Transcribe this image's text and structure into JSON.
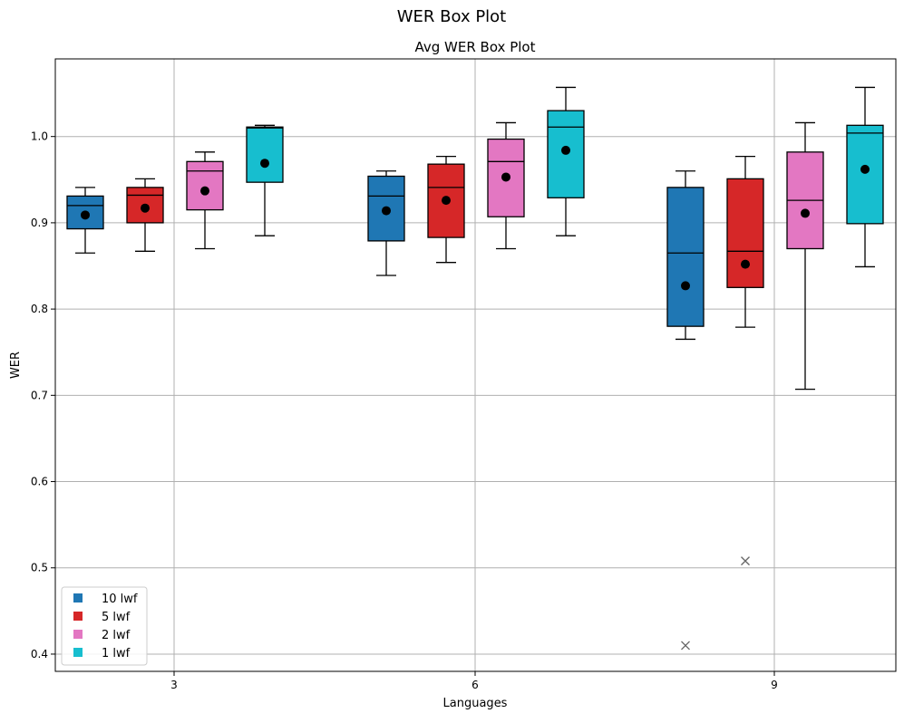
{
  "chart_data": {
    "type": "box",
    "suptitle": "WER Box Plot",
    "title": "Avg WER Box Plot",
    "xlabel": "Languages",
    "ylabel": "WER",
    "ylim": [
      0.38,
      1.09
    ],
    "grid": true,
    "legend_position": "lower-left",
    "x_ticks": [
      "3",
      "6",
      "9"
    ],
    "y_ticks": [
      0.4,
      0.5,
      0.6,
      0.7,
      0.8,
      0.9,
      1.0
    ],
    "y_tick_labels": [
      "0.4",
      "0.5",
      "0.6",
      "0.7",
      "0.8",
      "0.9",
      "1.0"
    ],
    "series": [
      {
        "name": "10 lwf",
        "color": "#1f77b4",
        "boxes": [
          {
            "group": "3",
            "whisker_low": 0.865,
            "q1": 0.893,
            "median": 0.92,
            "q3": 0.931,
            "whisker_high": 0.941,
            "mean": 0.909,
            "outliers": []
          },
          {
            "group": "6",
            "whisker_low": 0.839,
            "q1": 0.879,
            "median": 0.931,
            "q3": 0.954,
            "whisker_high": 0.96,
            "mean": 0.914,
            "outliers": []
          },
          {
            "group": "9",
            "whisker_low": 0.765,
            "q1": 0.78,
            "median": 0.865,
            "q3": 0.941,
            "whisker_high": 0.96,
            "mean": 0.827,
            "outliers": [
              0.41
            ]
          }
        ]
      },
      {
        "name": "5 lwf",
        "color": "#d62728",
        "boxes": [
          {
            "group": "3",
            "whisker_low": 0.867,
            "q1": 0.9,
            "median": 0.932,
            "q3": 0.941,
            "whisker_high": 0.951,
            "mean": 0.917,
            "outliers": []
          },
          {
            "group": "6",
            "whisker_low": 0.854,
            "q1": 0.883,
            "median": 0.941,
            "q3": 0.968,
            "whisker_high": 0.977,
            "mean": 0.926,
            "outliers": []
          },
          {
            "group": "9",
            "whisker_low": 0.779,
            "q1": 0.825,
            "median": 0.867,
            "q3": 0.951,
            "whisker_high": 0.977,
            "mean": 0.852,
            "outliers": [
              0.508
            ]
          }
        ]
      },
      {
        "name": "2 lwf",
        "color": "#e377c2",
        "boxes": [
          {
            "group": "3",
            "whisker_low": 0.87,
            "q1": 0.915,
            "median": 0.96,
            "q3": 0.971,
            "whisker_high": 0.982,
            "mean": 0.937,
            "outliers": []
          },
          {
            "group": "6",
            "whisker_low": 0.87,
            "q1": 0.907,
            "median": 0.971,
            "q3": 0.997,
            "whisker_high": 1.016,
            "mean": 0.953,
            "outliers": []
          },
          {
            "group": "9",
            "whisker_low": 0.707,
            "q1": 0.87,
            "median": 0.926,
            "q3": 0.982,
            "whisker_high": 1.016,
            "mean": 0.911,
            "outliers": []
          }
        ]
      },
      {
        "name": "1 lwf",
        "color": "#17becf",
        "boxes": [
          {
            "group": "3",
            "whisker_low": 0.885,
            "q1": 0.947,
            "median": 1.01,
            "q3": 1.011,
            "whisker_high": 1.013,
            "mean": 0.969,
            "outliers": []
          },
          {
            "group": "6",
            "whisker_low": 0.885,
            "q1": 0.929,
            "median": 1.011,
            "q3": 1.03,
            "whisker_high": 1.057,
            "mean": 0.984,
            "outliers": []
          },
          {
            "group": "9",
            "whisker_low": 0.849,
            "q1": 0.899,
            "median": 1.004,
            "q3": 1.013,
            "whisker_high": 1.057,
            "mean": 0.962,
            "outliers": []
          }
        ]
      }
    ]
  }
}
